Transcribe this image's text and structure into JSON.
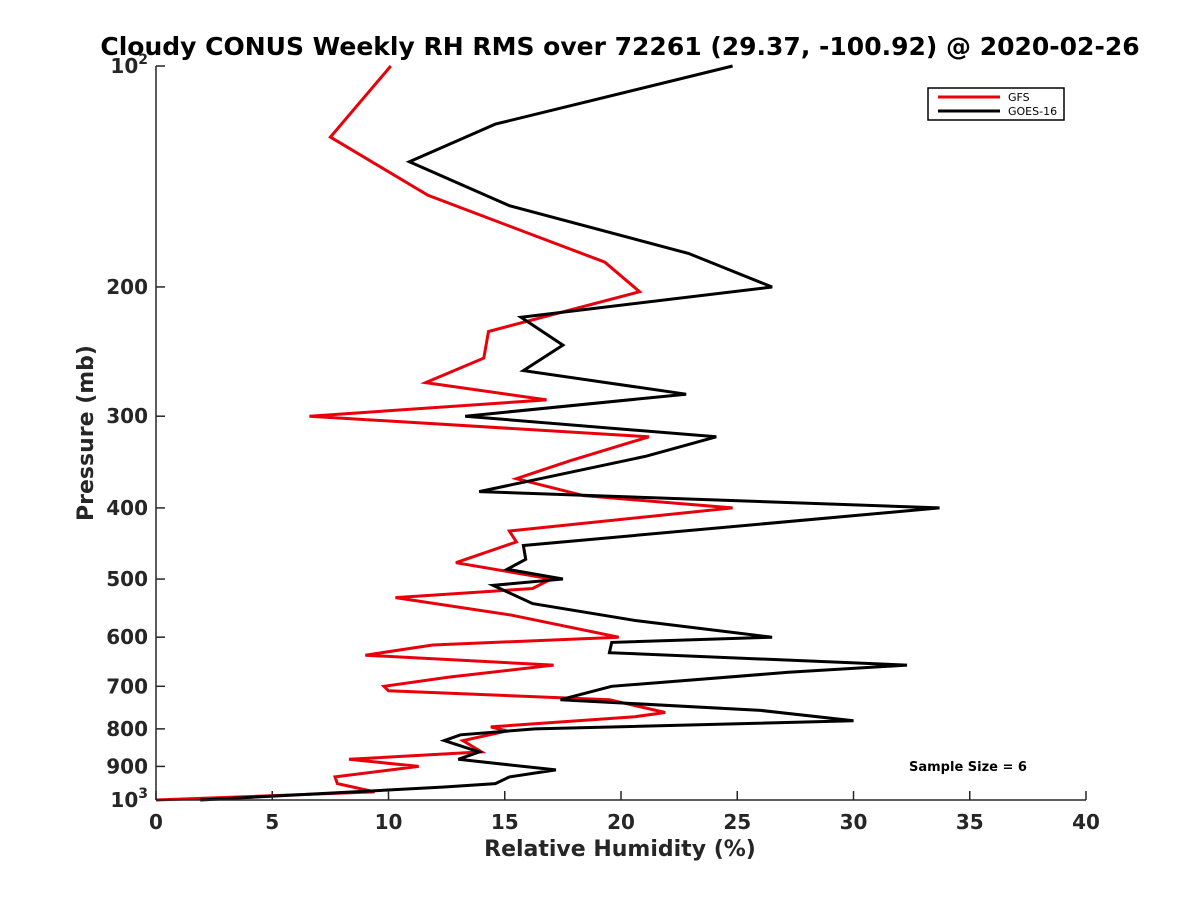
{
  "chart_data": {
    "type": "line",
    "title": "Cloudy CONUS Weekly RH RMS over 72261 (29.37, -100.92) @ 2020-02-26",
    "xlabel": "Relative Humidity (%)",
    "ylabel": "Pressure (mb)",
    "xlim": [
      0,
      40
    ],
    "ylim": [
      100,
      1000
    ],
    "y_scale": "log",
    "y_reversed": true,
    "x_ticks": [
      0,
      5,
      10,
      15,
      20,
      25,
      30,
      35,
      40
    ],
    "y_ticks": [
      {
        "value": 100,
        "label": "10",
        "sup": "2"
      },
      {
        "value": 200,
        "label": "200"
      },
      {
        "value": 300,
        "label": "300"
      },
      {
        "value": 400,
        "label": "400"
      },
      {
        "value": 500,
        "label": "500"
      },
      {
        "value": 600,
        "label": "600"
      },
      {
        "value": 700,
        "label": "700"
      },
      {
        "value": 800,
        "label": "800"
      },
      {
        "value": 900,
        "label": "900"
      },
      {
        "value": 1000,
        "label": "10",
        "sup": "3"
      }
    ],
    "grid": false,
    "legend_position": "top-right",
    "annotation": "Sample Size = 6",
    "series": [
      {
        "name": "GFS",
        "color": "#e8000b",
        "points": [
          [
            10.1,
            100
          ],
          [
            7.5,
            125
          ],
          [
            11.7,
            150
          ],
          [
            19.3,
            185
          ],
          [
            20.8,
            203
          ],
          [
            14.3,
            230
          ],
          [
            14.1,
            250
          ],
          [
            11.6,
            270
          ],
          [
            16.8,
            285
          ],
          [
            6.6,
            300
          ],
          [
            21.2,
            320
          ],
          [
            17.8,
            345
          ],
          [
            15.5,
            365
          ],
          [
            18.4,
            385
          ],
          [
            24.8,
            400
          ],
          [
            15.2,
            430
          ],
          [
            15.5,
            445
          ],
          [
            12.9,
            475
          ],
          [
            17.0,
            500
          ],
          [
            16.2,
            515
          ],
          [
            10.3,
            530
          ],
          [
            15.3,
            560
          ],
          [
            19.9,
            600
          ],
          [
            11.9,
            615
          ],
          [
            9.0,
            635
          ],
          [
            17.1,
            655
          ],
          [
            12.6,
            680
          ],
          [
            9.8,
            700
          ],
          [
            10.0,
            710
          ],
          [
            19.5,
            730
          ],
          [
            21.9,
            760
          ],
          [
            20.6,
            770
          ],
          [
            14.4,
            795
          ],
          [
            15.1,
            805
          ],
          [
            13.2,
            830
          ],
          [
            14.0,
            860
          ],
          [
            8.3,
            880
          ],
          [
            11.3,
            900
          ],
          [
            7.7,
            930
          ],
          [
            7.8,
            950
          ],
          [
            9.4,
            975
          ],
          [
            0.0,
            1000
          ]
        ]
      },
      {
        "name": "GOES-16",
        "color": "#000000",
        "points": [
          [
            24.8,
            100
          ],
          [
            14.6,
            120
          ],
          [
            10.9,
            135
          ],
          [
            15.2,
            155
          ],
          [
            22.9,
            180
          ],
          [
            26.5,
            200
          ],
          [
            15.7,
            220
          ],
          [
            17.5,
            240
          ],
          [
            15.8,
            260
          ],
          [
            22.8,
            280
          ],
          [
            13.3,
            300
          ],
          [
            24.1,
            320
          ],
          [
            21.1,
            340
          ],
          [
            13.9,
            380
          ],
          [
            33.7,
            400
          ],
          [
            15.8,
            450
          ],
          [
            15.9,
            470
          ],
          [
            15.1,
            485
          ],
          [
            17.5,
            500
          ],
          [
            14.5,
            510
          ],
          [
            16.2,
            540
          ],
          [
            20.7,
            570
          ],
          [
            26.5,
            600
          ],
          [
            19.6,
            610
          ],
          [
            19.5,
            630
          ],
          [
            32.3,
            655
          ],
          [
            27.2,
            670
          ],
          [
            19.6,
            700
          ],
          [
            17.4,
            730
          ],
          [
            26.0,
            755
          ],
          [
            30.0,
            780
          ],
          [
            16.3,
            800
          ],
          [
            13.1,
            815
          ],
          [
            12.4,
            830
          ],
          [
            13.9,
            860
          ],
          [
            13.0,
            880
          ],
          [
            17.2,
            910
          ],
          [
            15.2,
            930
          ],
          [
            14.6,
            950
          ],
          [
            12.4,
            960
          ],
          [
            1.9,
            1000
          ]
        ]
      }
    ]
  }
}
